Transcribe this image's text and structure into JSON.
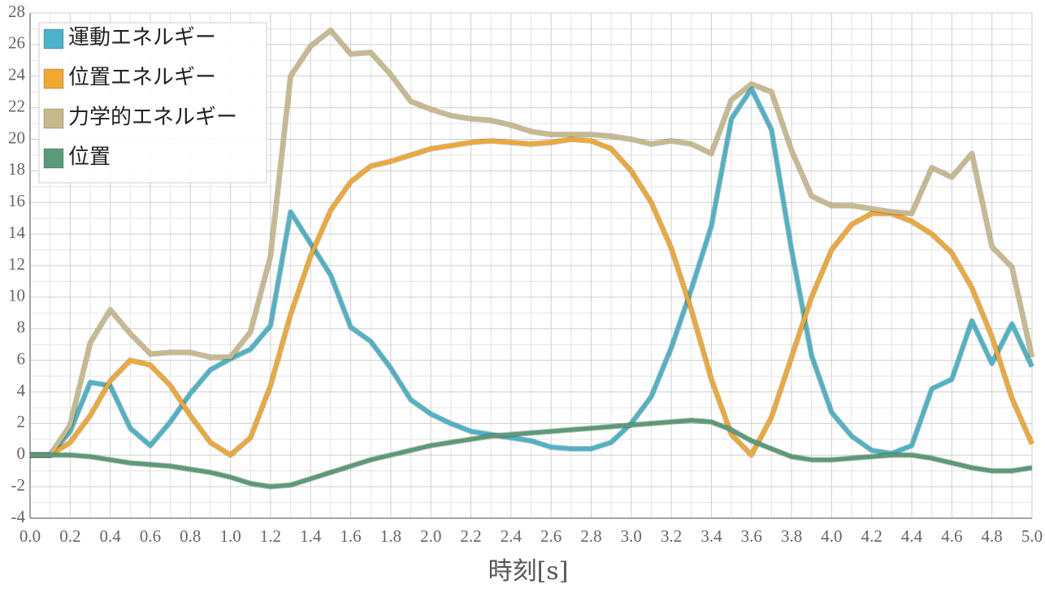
{
  "chart_data": {
    "type": "line",
    "x_label": "時刻[s]",
    "x": [
      0,
      0.1,
      0.2,
      0.3,
      0.4,
      0.5,
      0.6,
      0.7,
      0.8,
      0.9,
      1.0,
      1.1,
      1.2,
      1.3,
      1.4,
      1.5,
      1.6,
      1.7,
      1.8,
      1.9,
      2.0,
      2.1,
      2.2,
      2.3,
      2.4,
      2.5,
      2.6,
      2.7,
      2.8,
      2.9,
      3.0,
      3.1,
      3.2,
      3.3,
      3.4,
      3.5,
      3.6,
      3.7,
      3.8,
      3.9,
      4.0,
      4.1,
      4.2,
      4.3,
      4.4,
      4.5,
      4.6,
      4.7,
      4.8,
      4.9,
      5.0
    ],
    "series": [
      {
        "name": "運動エネルギー",
        "color": "#4bb3c8",
        "values": [
          0,
          0,
          1.5,
          4.6,
          4.4,
          1.7,
          0.6,
          2.1,
          3.9,
          5.4,
          6.1,
          6.7,
          8.2,
          15.4,
          13.4,
          11.4,
          8.1,
          7.2,
          5.5,
          3.5,
          2.6,
          2.0,
          1.5,
          1.3,
          1.1,
          0.9,
          0.5,
          0.4,
          0.4,
          0.8,
          2.0,
          3.7,
          6.8,
          10.5,
          14.5,
          21.3,
          23.2,
          20.6,
          13.0,
          6.3,
          2.7,
          1.2,
          0.3,
          0.1,
          0.6,
          4.2,
          4.8,
          8.5,
          5.8,
          8.3,
          5.6
        ]
      },
      {
        "name": "位置エネルギー",
        "color": "#f0a830",
        "values": [
          0,
          0,
          0.8,
          2.5,
          4.7,
          6.0,
          5.7,
          4.4,
          2.5,
          0.8,
          0,
          1.1,
          4.4,
          8.9,
          12.6,
          15.5,
          17.3,
          18.3,
          18.6,
          19.0,
          19.4,
          19.6,
          19.8,
          19.9,
          19.8,
          19.7,
          19.8,
          20.0,
          19.9,
          19.4,
          18.0,
          16.0,
          13.1,
          9.2,
          4.8,
          1.3,
          0,
          2.4,
          6.2,
          10.0,
          13.0,
          14.6,
          15.3,
          15.3,
          14.8,
          14.0,
          12.8,
          10.6,
          7.5,
          3.6,
          0.7
        ]
      },
      {
        "name": "力学的エネルギー",
        "color": "#c8b98a",
        "values": [
          0,
          0,
          1.9,
          7.1,
          9.2,
          7.7,
          6.4,
          6.5,
          6.5,
          6.2,
          6.2,
          7.8,
          12.6,
          24.0,
          25.9,
          26.9,
          25.4,
          25.5,
          24.1,
          22.4,
          21.9,
          21.5,
          21.3,
          21.2,
          20.9,
          20.5,
          20.3,
          20.3,
          20.3,
          20.2,
          20.0,
          19.7,
          19.9,
          19.7,
          19.1,
          22.5,
          23.5,
          23.0,
          19.3,
          16.4,
          15.8,
          15.8,
          15.6,
          15.4,
          15.3,
          18.2,
          17.6,
          19.1,
          13.2,
          11.9,
          6.2
        ]
      },
      {
        "name": "位置",
        "color": "#5a9a78",
        "values": [
          0,
          0,
          0,
          -0.1,
          -0.3,
          -0.5,
          -0.6,
          -0.7,
          -0.9,
          -1.1,
          -1.4,
          -1.8,
          -2.0,
          -1.9,
          -1.5,
          -1.1,
          -0.7,
          -0.3,
          0,
          0.3,
          0.6,
          0.8,
          1.0,
          1.2,
          1.3,
          1.4,
          1.5,
          1.6,
          1.7,
          1.8,
          1.9,
          2.0,
          2.1,
          2.2,
          2.1,
          1.6,
          0.9,
          0.4,
          -0.1,
          -0.3,
          -0.3,
          -0.2,
          -0.1,
          0,
          0,
          -0.2,
          -0.5,
          -0.8,
          -1.0,
          -1.0,
          -0.8
        ]
      }
    ],
    "xlim": [
      0,
      5
    ],
    "xticks": [
      {
        "value": 0,
        "label": "0.0"
      },
      0.2,
      0.4,
      0.6,
      0.8,
      {
        "value": 1,
        "label": "1.0"
      },
      1.2,
      1.4,
      1.6,
      1.8,
      {
        "value": 2,
        "label": "2.0"
      },
      2.2,
      2.4,
      2.6,
      2.8,
      {
        "value": 3,
        "label": "3.0"
      },
      3.2,
      3.4,
      3.6,
      3.8,
      {
        "value": 4,
        "label": "4.0"
      },
      4.2,
      4.4,
      4.6,
      4.8,
      {
        "value": 5,
        "label": "5.0"
      }
    ],
    "ylim": [
      -4,
      28
    ],
    "yticks": [
      -4,
      -2,
      0,
      2,
      4,
      6,
      8,
      10,
      12,
      14,
      16,
      18,
      20,
      22,
      24,
      26,
      28
    ],
    "grid": true,
    "legend": "upper left"
  }
}
